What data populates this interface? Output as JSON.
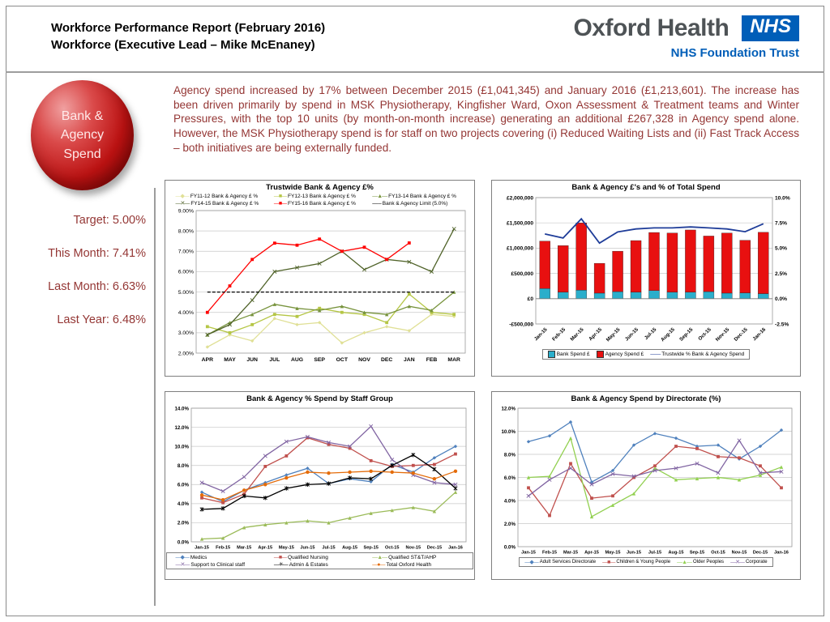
{
  "header": {
    "title_line1": "Workforce Performance Report (February 2016)",
    "title_line2": "Workforce (Executive Lead – Mike McEnaney)"
  },
  "logo": {
    "brand": "Oxford Health",
    "nhs": "NHS",
    "trust": "NHS Foundation Trust"
  },
  "bubble": {
    "line1": "Bank &",
    "line2": "Agency",
    "line3": "Spend"
  },
  "commentary": "Agency spend increased by 17% between December 2015 (£1,041,345) and January 2016 (£1,213,601). The increase has been driven primarily by spend in MSK Physiotherapy, Kingfisher Ward, Oxon Assessment & Treatment teams and Winter Pressures, with the top 10 units (by month-on-month increase) generating an additional £267,328 in Agency spend alone.  However, the MSK Physiotherapy spend is for staff on two projects covering (i) Reduced Waiting Lists and (ii) Fast Track Access – both initiatives are being externally funded.",
  "stats": [
    {
      "label": "Target:",
      "value": "5.00%"
    },
    {
      "label": "This Month:",
      "value": "7.41%"
    },
    {
      "label": "Last Month:",
      "value": "6.63%"
    },
    {
      "label": "Last Year:",
      "value": "6.48%"
    }
  ],
  "chart_data": [
    {
      "id": "trustwide",
      "type": "line",
      "title": "Trustwide Bank & Agency £%",
      "categories": [
        "APR",
        "MAY",
        "JUN",
        "JUL",
        "AUG",
        "SEP",
        "OCT",
        "NOV",
        "DEC",
        "JAN",
        "FEB",
        "MAR"
      ],
      "ylim": [
        2,
        9
      ],
      "ystep": 1,
      "ydecimals": 2,
      "legend_pos": "top",
      "series": [
        {
          "name": "FY11-12 Bank & Agency £ %",
          "color": "#E0E096",
          "marker": "diamond",
          "values": [
            2.3,
            2.9,
            2.6,
            3.7,
            3.4,
            3.5,
            2.5,
            3.0,
            3.3,
            3.1,
            3.9,
            3.8
          ]
        },
        {
          "name": "FY12-13 Bank & Agency £ %",
          "color": "#B5C645",
          "marker": "square",
          "values": [
            3.3,
            3.0,
            3.4,
            3.9,
            3.8,
            4.2,
            4.0,
            3.9,
            3.5,
            4.9,
            4.0,
            3.9
          ]
        },
        {
          "name": "FY13-14 Bank & Agency £ %",
          "color": "#77933C",
          "marker": "triangle",
          "values": [
            2.9,
            3.5,
            3.9,
            4.4,
            4.2,
            4.1,
            4.3,
            4.0,
            3.9,
            4.3,
            4.1,
            5.0
          ]
        },
        {
          "name": "FY14-15 Bank & Agency £ %",
          "color": "#4F6228",
          "marker": "x",
          "values": [
            2.9,
            3.4,
            4.6,
            6.0,
            6.2,
            6.4,
            7.0,
            6.1,
            6.6,
            6.48,
            6.0,
            8.1
          ]
        },
        {
          "name": "FY15-16 Bank & Agency £ %",
          "color": "#FF0000",
          "marker": "square",
          "values": [
            4.0,
            5.3,
            6.6,
            7.4,
            7.3,
            7.6,
            7.0,
            7.2,
            6.6,
            7.41,
            null,
            null
          ]
        },
        {
          "name": "Bank & Agency Limit (5.0%)",
          "color": "#000000",
          "marker": "none",
          "dash": true,
          "values": [
            5,
            5,
            5,
            5,
            5,
            5,
            5,
            5,
            5,
            5,
            5,
            5
          ]
        }
      ]
    },
    {
      "id": "spend-combo",
      "type": "combo",
      "title": "Bank & Agency £'s and % of Total Spend",
      "categories": [
        "Jan-15",
        "Feb-15",
        "Mar-15",
        "Apr-15",
        "May-15",
        "Jun-15",
        "Jul-15",
        "Aug-15",
        "Sep-15",
        "Oct-15",
        "Nov-15",
        "Dec-15",
        "Jan-16"
      ],
      "left_ylim": [
        -500000,
        2000000
      ],
      "left_step": 500000,
      "right_ylim": [
        -2.5,
        10
      ],
      "right_step": 2.5,
      "legend_pos": "bottom",
      "bars": [
        {
          "name": "Bank Spend £",
          "color": "#2BAECB",
          "values": [
            200000,
            130000,
            170000,
            110000,
            140000,
            130000,
            160000,
            130000,
            130000,
            140000,
            110000,
            115000,
            100000
          ]
        },
        {
          "name": "Agency Spend £",
          "color": "#E81010",
          "values": [
            940000,
            920000,
            1330000,
            590000,
            800000,
            1020000,
            1150000,
            1170000,
            1230000,
            1100000,
            1190000,
            1041345,
            1213601
          ]
        }
      ],
      "line": {
        "name": "Trustwide % Bank & Agency Spend",
        "color": "#1F3D99",
        "values": [
          6.4,
          6.0,
          7.9,
          5.5,
          6.6,
          6.9,
          7.0,
          7.0,
          7.1,
          7.0,
          6.9,
          6.63,
          7.41
        ]
      }
    },
    {
      "id": "staff-group",
      "type": "line",
      "title": "Bank & Agency % Spend by Staff Group",
      "categories": [
        "Jan-15",
        "Feb-15",
        "Mar-15",
        "Apr-15",
        "May-15",
        "Jun-15",
        "Jul-15",
        "Aug-15",
        "Sep-15",
        "Oct-15",
        "Nov-15",
        "Dec-15",
        "Jan-16"
      ],
      "ylim": [
        0,
        14
      ],
      "ystep": 2,
      "ydecimals": 1,
      "legend_pos": "bottom",
      "series": [
        {
          "name": "Medics",
          "color": "#4F81BD",
          "marker": "diamond",
          "values": [
            5.2,
            4.2,
            5.4,
            6.2,
            7.0,
            7.7,
            6.1,
            6.6,
            6.3,
            8.1,
            7.3,
            8.8,
            10.0
          ]
        },
        {
          "name": "Qualified Nursing",
          "color": "#C0504D",
          "marker": "square",
          "values": [
            4.6,
            4.1,
            5.0,
            7.9,
            9.0,
            10.9,
            10.2,
            9.8,
            8.5,
            7.9,
            8.0,
            8.1,
            9.2
          ]
        },
        {
          "name": "Qualified ST&T/AHP",
          "color": "#9BBB59",
          "marker": "triangle",
          "values": [
            0.3,
            0.4,
            1.5,
            1.8,
            2.0,
            2.2,
            2.0,
            2.5,
            3.0,
            3.3,
            3.6,
            3.2,
            5.2
          ]
        },
        {
          "name": "Support to Clinical staff",
          "color": "#8064A2",
          "marker": "x",
          "values": [
            6.2,
            5.3,
            6.8,
            9.0,
            10.5,
            11.0,
            10.4,
            10.0,
            12.1,
            8.6,
            7.0,
            6.2,
            6.0
          ]
        },
        {
          "name": "Admin & Estates",
          "color": "#000000",
          "marker": "star",
          "values": [
            3.4,
            3.5,
            4.8,
            4.6,
            5.6,
            6.0,
            6.1,
            6.7,
            6.6,
            8.0,
            9.1,
            7.6,
            5.6
          ]
        },
        {
          "name": "Total Oxford Health",
          "color": "#E46C0A",
          "marker": "circle",
          "values": [
            4.9,
            4.4,
            5.4,
            6.0,
            6.7,
            7.3,
            7.2,
            7.3,
            7.4,
            7.3,
            7.2,
            6.6,
            7.4
          ]
        }
      ]
    },
    {
      "id": "directorate",
      "type": "line",
      "title": "Bank & Agency Spend by Directorate (%)",
      "categories": [
        "Jan-15",
        "Feb-15",
        "Mar-15",
        "Apr-15",
        "May-15",
        "Jun-15",
        "Jul-15",
        "Aug-15",
        "Sep-15",
        "Oct-15",
        "Nov-15",
        "Dec-15",
        "Jan-16"
      ],
      "ylim": [
        0,
        12
      ],
      "ystep": 2,
      "ydecimals": 1,
      "legend_pos": "bottom",
      "series": [
        {
          "name": "Adult Services Directorate",
          "color": "#4F81BD",
          "marker": "diamond",
          "values": [
            9.1,
            9.6,
            10.8,
            5.6,
            6.6,
            8.8,
            9.8,
            9.4,
            8.7,
            8.8,
            7.6,
            8.7,
            10.1
          ]
        },
        {
          "name": "Children & Young People",
          "color": "#C0504D",
          "marker": "square",
          "values": [
            5.1,
            2.7,
            7.2,
            4.2,
            4.4,
            6.0,
            7.0,
            8.7,
            8.5,
            7.8,
            7.7,
            7.0,
            5.1
          ]
        },
        {
          "name": "Older Peoples",
          "color": "#92D050",
          "marker": "triangle",
          "values": [
            6.0,
            6.1,
            9.4,
            2.6,
            3.6,
            4.6,
            6.8,
            5.8,
            5.9,
            6.0,
            5.8,
            6.2,
            6.9
          ]
        },
        {
          "name": "Corporate",
          "color": "#8064A2",
          "marker": "x",
          "values": [
            4.4,
            5.8,
            6.8,
            5.4,
            6.3,
            6.1,
            6.6,
            6.8,
            7.2,
            6.4,
            9.2,
            6.4,
            6.5
          ]
        }
      ]
    }
  ]
}
